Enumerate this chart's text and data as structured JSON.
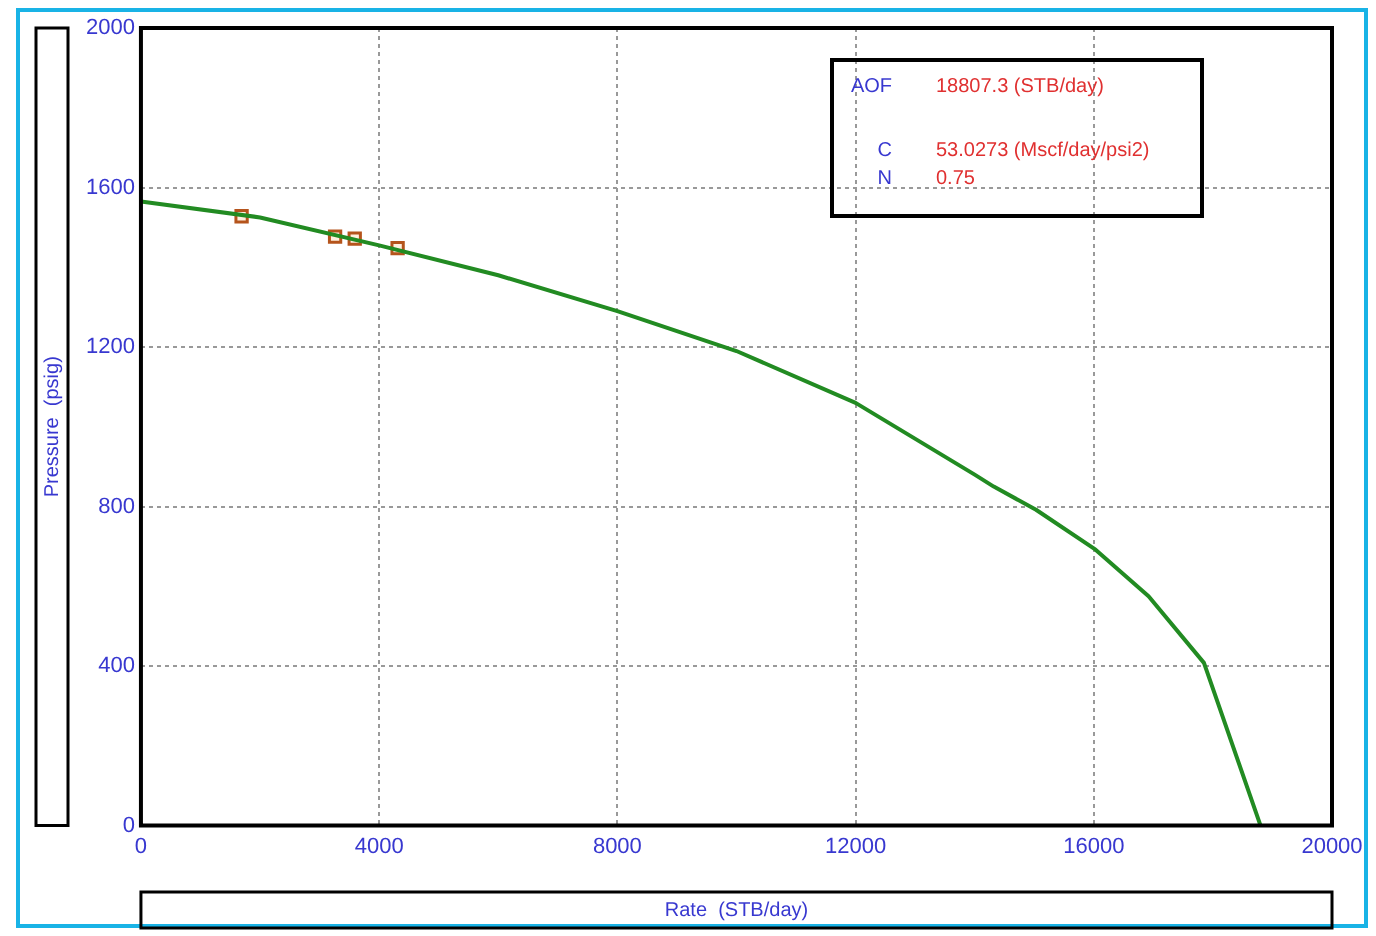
{
  "chart_data": {
    "type": "line",
    "xlabel": "Rate  (STB/day)",
    "ylabel": "Pressure  (psig)",
    "annotations": [
      "AOF 18807.3 (STB/day)",
      "C 53.0273 (Mscf/day/psi2)",
      "N 0.75"
    ],
    "series": [
      {
        "color": "#228b22",
        "marker": "none",
        "x": [
          0,
          2000,
          4000,
          6000,
          8000,
          10000,
          12000,
          14000,
          14320,
          15030,
          16030,
          16920,
          17850,
          18800
        ],
        "values": [
          1565,
          1525,
          1455,
          1380,
          1290,
          1190,
          1060,
          880,
          850,
          792,
          692,
          575,
          408,
          0
        ]
      },
      {
        "type": "scatter",
        "color": "#b5541c",
        "marker": "square",
        "x": [
          1690,
          3260,
          3590,
          4310
        ],
        "values": [
          1528,
          1477,
          1472,
          1448
        ]
      }
    ],
    "xlim": [
      0,
      20000
    ],
    "xticks": [
      0,
      4000,
      8000,
      12000,
      16000,
      20000
    ],
    "ylim": [
      0,
      2000
    ],
    "yticks": [
      0,
      400,
      800,
      1200,
      1600,
      2000
    ],
    "grid": true,
    "legend": false
  }
}
